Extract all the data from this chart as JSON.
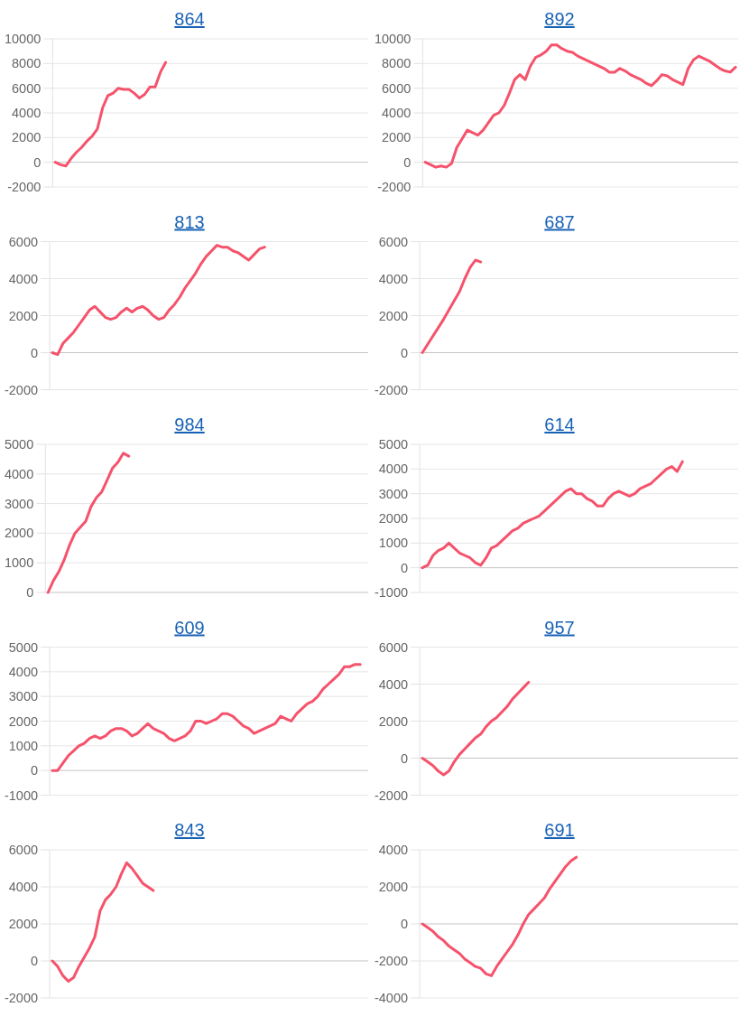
{
  "chart_data": [
    {
      "type": "line",
      "title": "864",
      "categories": [
        null,
        null,
        null,
        null,
        null,
        null,
        null,
        null,
        null,
        null,
        null,
        null,
        null,
        null,
        null,
        null,
        null,
        null,
        null,
        null,
        null,
        null,
        null,
        null,
        null,
        null,
        null,
        null,
        null,
        null,
        null,
        null,
        null,
        null,
        null,
        null,
        null,
        null,
        null,
        null,
        null,
        null,
        null,
        null,
        null,
        null,
        null,
        null,
        null,
        null,
        null,
        null,
        null,
        null,
        null,
        null,
        null,
        null,
        null,
        null
      ],
      "values": [
        0,
        -200,
        -300,
        300,
        800,
        1200,
        1700,
        2100,
        2700,
        4400,
        5400,
        5600,
        6000,
        5900,
        5900,
        5600,
        5200,
        5500,
        6100,
        6100,
        7300,
        8100,
        null,
        null,
        null,
        null,
        null,
        null,
        null,
        null,
        null,
        null,
        null,
        null,
        null,
        null,
        null,
        null,
        null,
        null,
        null,
        null,
        null,
        null,
        null,
        null,
        null,
        null,
        null,
        null,
        null,
        null,
        null,
        null,
        null,
        null,
        null,
        null,
        null,
        null
      ],
      "color": "#f5536c",
      "ylim": [
        -2000,
        10000
      ],
      "yticks": [
        -2000,
        0,
        2000,
        4000,
        6000,
        8000,
        10000
      ],
      "grid": "y",
      "tick_labels": "y"
    },
    {
      "type": "line",
      "title": "892",
      "categories": [
        null,
        null,
        null,
        null,
        null,
        null,
        null,
        null,
        null,
        null,
        null,
        null,
        null,
        null,
        null,
        null,
        null,
        null,
        null,
        null,
        null,
        null,
        null,
        null,
        null,
        null,
        null,
        null,
        null,
        null,
        null,
        null,
        null,
        null,
        null,
        null,
        null,
        null,
        null,
        null,
        null,
        null,
        null,
        null,
        null,
        null,
        null,
        null,
        null,
        null,
        null,
        null,
        null,
        null,
        null,
        null,
        null,
        null,
        null,
        null
      ],
      "values": [
        0,
        -200,
        -400,
        -300,
        -400,
        -100,
        1200,
        1900,
        2600,
        2400,
        2200,
        2600,
        3200,
        3800,
        4000,
        4600,
        5600,
        6700,
        7100,
        6700,
        7800,
        8500,
        8700,
        9000,
        9500,
        9500,
        9200,
        9000,
        8900,
        8600,
        8400,
        8200,
        8000,
        7800,
        7600,
        7300,
        7300,
        7600,
        7400,
        7100,
        6900,
        6700,
        6400,
        6200,
        6600,
        7100,
        7000,
        6700,
        6500,
        6300,
        7600,
        8300,
        8600,
        8400,
        8200,
        7900,
        7600,
        7400,
        7300,
        7700
      ],
      "color": "#f5536c",
      "ylim": [
        -2000,
        10000
      ],
      "yticks": [
        -2000,
        0,
        2000,
        4000,
        6000,
        8000,
        10000
      ],
      "grid": "y",
      "tick_labels": "y"
    },
    {
      "type": "line",
      "title": "813",
      "categories": [
        null,
        null,
        null,
        null,
        null,
        null,
        null,
        null,
        null,
        null,
        null,
        null,
        null,
        null,
        null,
        null,
        null,
        null,
        null,
        null,
        null,
        null,
        null,
        null,
        null,
        null,
        null,
        null,
        null,
        null,
        null,
        null,
        null,
        null,
        null,
        null,
        null,
        null,
        null,
        null,
        null,
        null,
        null,
        null,
        null,
        null,
        null,
        null,
        null,
        null,
        null,
        null,
        null,
        null,
        null,
        null,
        null,
        null,
        null,
        null
      ],
      "values": [
        0,
        -100,
        500,
        800,
        1100,
        1500,
        1900,
        2300,
        2500,
        2200,
        1900,
        1800,
        1900,
        2200,
        2400,
        2200,
        2400,
        2500,
        2300,
        2000,
        1800,
        1900,
        2300,
        2600,
        3000,
        3500,
        3900,
        4300,
        4800,
        5200,
        5500,
        5800,
        5700,
        5700,
        5500,
        5400,
        5200,
        5000,
        5300,
        5600,
        5700,
        null,
        null,
        null,
        null,
        null,
        null,
        null,
        null,
        null,
        null,
        null,
        null,
        null,
        null,
        null,
        null,
        null,
        null,
        null
      ],
      "color": "#f5536c",
      "ylim": [
        -2000,
        6000
      ],
      "yticks": [
        -2000,
        0,
        2000,
        4000,
        6000
      ],
      "grid": "y",
      "tick_labels": "y"
    },
    {
      "type": "line",
      "title": "687",
      "categories": [
        null,
        null,
        null,
        null,
        null,
        null,
        null,
        null,
        null,
        null,
        null,
        null,
        null,
        null,
        null,
        null,
        null,
        null,
        null,
        null,
        null,
        null,
        null,
        null,
        null,
        null,
        null,
        null,
        null,
        null,
        null,
        null,
        null,
        null,
        null,
        null,
        null,
        null,
        null,
        null,
        null,
        null,
        null,
        null,
        null,
        null,
        null,
        null,
        null,
        null,
        null,
        null,
        null,
        null,
        null,
        null,
        null,
        null,
        null,
        null
      ],
      "values": [
        0,
        450,
        900,
        1350,
        1800,
        2300,
        2800,
        3300,
        4000,
        4600,
        5000,
        4900,
        null,
        null,
        null,
        null,
        null,
        null,
        null,
        null,
        null,
        null,
        null,
        null,
        null,
        null,
        null,
        null,
        null,
        null,
        null,
        null,
        null,
        null,
        null,
        null,
        null,
        null,
        null,
        null,
        null,
        null,
        null,
        null,
        null,
        null,
        null,
        null,
        null,
        null,
        null,
        null,
        null,
        null,
        null,
        null,
        null,
        null,
        null,
        null
      ],
      "color": "#f5536c",
      "ylim": [
        -2000,
        6000
      ],
      "yticks": [
        -2000,
        0,
        2000,
        4000,
        6000
      ],
      "grid": "y",
      "tick_labels": "y"
    },
    {
      "type": "line",
      "title": "984",
      "categories": [
        null,
        null,
        null,
        null,
        null,
        null,
        null,
        null,
        null,
        null,
        null,
        null,
        null,
        null,
        null,
        null,
        null,
        null,
        null,
        null,
        null,
        null,
        null,
        null,
        null,
        null,
        null,
        null,
        null,
        null,
        null,
        null,
        null,
        null,
        null,
        null,
        null,
        null,
        null,
        null,
        null,
        null,
        null,
        null,
        null,
        null,
        null,
        null,
        null,
        null,
        null,
        null,
        null,
        null,
        null,
        null,
        null,
        null,
        null,
        null
      ],
      "values": [
        0,
        400,
        700,
        1100,
        1600,
        2000,
        2200,
        2400,
        2900,
        3200,
        3400,
        3800,
        4200,
        4400,
        4700,
        4600,
        null,
        null,
        null,
        null,
        null,
        null,
        null,
        null,
        null,
        null,
        null,
        null,
        null,
        null,
        null,
        null,
        null,
        null,
        null,
        null,
        null,
        null,
        null,
        null,
        null,
        null,
        null,
        null,
        null,
        null,
        null,
        null,
        null,
        null,
        null,
        null,
        null,
        null,
        null,
        null,
        null,
        null,
        null,
        null
      ],
      "color": "#f5536c",
      "ylim": [
        0,
        5000
      ],
      "yticks": [
        0,
        1000,
        2000,
        3000,
        4000,
        5000
      ],
      "grid": "y",
      "tick_labels": "y"
    },
    {
      "type": "line",
      "title": "614",
      "categories": [
        null,
        null,
        null,
        null,
        null,
        null,
        null,
        null,
        null,
        null,
        null,
        null,
        null,
        null,
        null,
        null,
        null,
        null,
        null,
        null,
        null,
        null,
        null,
        null,
        null,
        null,
        null,
        null,
        null,
        null,
        null,
        null,
        null,
        null,
        null,
        null,
        null,
        null,
        null,
        null,
        null,
        null,
        null,
        null,
        null,
        null,
        null,
        null,
        null,
        null,
        null,
        null,
        null,
        null,
        null,
        null,
        null,
        null,
        null,
        null
      ],
      "values": [
        0,
        100,
        500,
        700,
        800,
        1000,
        800,
        600,
        500,
        400,
        200,
        100,
        400,
        800,
        900,
        1100,
        1300,
        1500,
        1600,
        1800,
        1900,
        2000,
        2100,
        2300,
        2500,
        2700,
        2900,
        3100,
        3200,
        3000,
        3000,
        2800,
        2700,
        2500,
        2500,
        2800,
        3000,
        3100,
        3000,
        2900,
        3000,
        3200,
        3300,
        3400,
        3600,
        3800,
        4000,
        4100,
        3900,
        4300,
        null,
        null,
        null,
        null,
        null,
        null,
        null,
        null,
        null,
        null
      ],
      "color": "#f5536c",
      "ylim": [
        -1000,
        5000
      ],
      "yticks": [
        -1000,
        0,
        1000,
        2000,
        3000,
        4000,
        5000
      ],
      "grid": "y",
      "tick_labels": "y"
    },
    {
      "type": "line",
      "title": "609",
      "categories": [
        null,
        null,
        null,
        null,
        null,
        null,
        null,
        null,
        null,
        null,
        null,
        null,
        null,
        null,
        null,
        null,
        null,
        null,
        null,
        null,
        null,
        null,
        null,
        null,
        null,
        null,
        null,
        null,
        null,
        null,
        null,
        null,
        null,
        null,
        null,
        null,
        null,
        null,
        null,
        null,
        null,
        null,
        null,
        null,
        null,
        null,
        null,
        null,
        null,
        null,
        null,
        null,
        null,
        null,
        null,
        null,
        null,
        null,
        null,
        null
      ],
      "values": [
        0,
        0,
        300,
        600,
        800,
        1000,
        1100,
        1300,
        1400,
        1300,
        1400,
        1600,
        1700,
        1700,
        1600,
        1400,
        1500,
        1700,
        1900,
        1700,
        1600,
        1500,
        1300,
        1200,
        1300,
        1400,
        1600,
        2000,
        2000,
        1900,
        2000,
        2100,
        2300,
        2300,
        2200,
        2000,
        1800,
        1700,
        1500,
        1600,
        1700,
        1800,
        1900,
        2200,
        2100,
        2000,
        2300,
        2500,
        2700,
        2800,
        3000,
        3300,
        3500,
        3700,
        3900,
        4200,
        4200,
        4300,
        4300,
        null
      ],
      "color": "#f5536c",
      "ylim": [
        -1000,
        5000
      ],
      "yticks": [
        -1000,
        0,
        1000,
        2000,
        3000,
        4000,
        5000
      ],
      "grid": "y",
      "tick_labels": "y"
    },
    {
      "type": "line",
      "title": "957",
      "categories": [
        null,
        null,
        null,
        null,
        null,
        null,
        null,
        null,
        null,
        null,
        null,
        null,
        null,
        null,
        null,
        null,
        null,
        null,
        null,
        null,
        null,
        null,
        null,
        null,
        null,
        null,
        null,
        null,
        null,
        null,
        null,
        null,
        null,
        null,
        null,
        null,
        null,
        null,
        null,
        null,
        null,
        null,
        null,
        null,
        null,
        null,
        null,
        null,
        null,
        null,
        null,
        null,
        null,
        null,
        null,
        null,
        null,
        null,
        null,
        null
      ],
      "values": [
        0,
        -200,
        -400,
        -700,
        -900,
        -700,
        -200,
        200,
        500,
        800,
        1100,
        1300,
        1700,
        2000,
        2200,
        2500,
        2800,
        3200,
        3500,
        3800,
        4100,
        null,
        null,
        null,
        null,
        null,
        null,
        null,
        null,
        null,
        null,
        null,
        null,
        null,
        null,
        null,
        null,
        null,
        null,
        null,
        null,
        null,
        null,
        null,
        null,
        null,
        null,
        null,
        null,
        null,
        null,
        null,
        null,
        null,
        null,
        null,
        null,
        null,
        null,
        null
      ],
      "color": "#f5536c",
      "ylim": [
        -2000,
        6000
      ],
      "yticks": [
        -2000,
        0,
        2000,
        4000,
        6000
      ],
      "grid": "y",
      "tick_labels": "y"
    },
    {
      "type": "line",
      "title": "843",
      "categories": [
        null,
        null,
        null,
        null,
        null,
        null,
        null,
        null,
        null,
        null,
        null,
        null,
        null,
        null,
        null,
        null,
        null,
        null,
        null,
        null,
        null,
        null,
        null,
        null,
        null,
        null,
        null,
        null,
        null,
        null,
        null,
        null,
        null,
        null,
        null,
        null,
        null,
        null,
        null,
        null,
        null,
        null,
        null,
        null,
        null,
        null,
        null,
        null,
        null,
        null,
        null,
        null,
        null,
        null,
        null,
        null,
        null,
        null,
        null,
        null
      ],
      "values": [
        0,
        -300,
        -800,
        -1100,
        -900,
        -300,
        200,
        700,
        1300,
        2700,
        3300,
        3600,
        4000,
        4700,
        5300,
        5000,
        4600,
        4200,
        4000,
        3800,
        null,
        null,
        null,
        null,
        null,
        null,
        null,
        null,
        null,
        null,
        null,
        null,
        null,
        null,
        null,
        null,
        null,
        null,
        null,
        null,
        null,
        null,
        null,
        null,
        null,
        null,
        null,
        null,
        null,
        null,
        null,
        null,
        null,
        null,
        null,
        null,
        null,
        null,
        null,
        null
      ],
      "color": "#f5536c",
      "ylim": [
        -2000,
        6000
      ],
      "yticks": [
        -2000,
        0,
        2000,
        4000,
        6000
      ],
      "grid": "y",
      "tick_labels": "y"
    },
    {
      "type": "line",
      "title": "691",
      "categories": [
        null,
        null,
        null,
        null,
        null,
        null,
        null,
        null,
        null,
        null,
        null,
        null,
        null,
        null,
        null,
        null,
        null,
        null,
        null,
        null,
        null,
        null,
        null,
        null,
        null,
        null,
        null,
        null,
        null,
        null,
        null,
        null,
        null,
        null,
        null,
        null,
        null,
        null,
        null,
        null,
        null,
        null,
        null,
        null,
        null,
        null,
        null,
        null,
        null,
        null,
        null,
        null,
        null,
        null,
        null,
        null,
        null,
        null,
        null,
        null
      ],
      "values": [
        0,
        -200,
        -400,
        -700,
        -900,
        -1200,
        -1400,
        -1600,
        -1900,
        -2100,
        -2300,
        -2400,
        -2700,
        -2800,
        -2300,
        -1900,
        -1500,
        -1100,
        -600,
        0,
        500,
        800,
        1100,
        1400,
        1900,
        2300,
        2700,
        3100,
        3400,
        3600,
        null,
        null,
        null,
        null,
        null,
        null,
        null,
        null,
        null,
        null,
        null,
        null,
        null,
        null,
        null,
        null,
        null,
        null,
        null,
        null,
        null,
        null,
        null,
        null,
        null,
        null,
        null,
        null,
        null,
        null
      ],
      "color": "#f5536c",
      "ylim": [
        -4000,
        4000
      ],
      "yticks": [
        -4000,
        -2000,
        0,
        2000,
        4000
      ],
      "grid": "y",
      "tick_labels": "y"
    }
  ]
}
